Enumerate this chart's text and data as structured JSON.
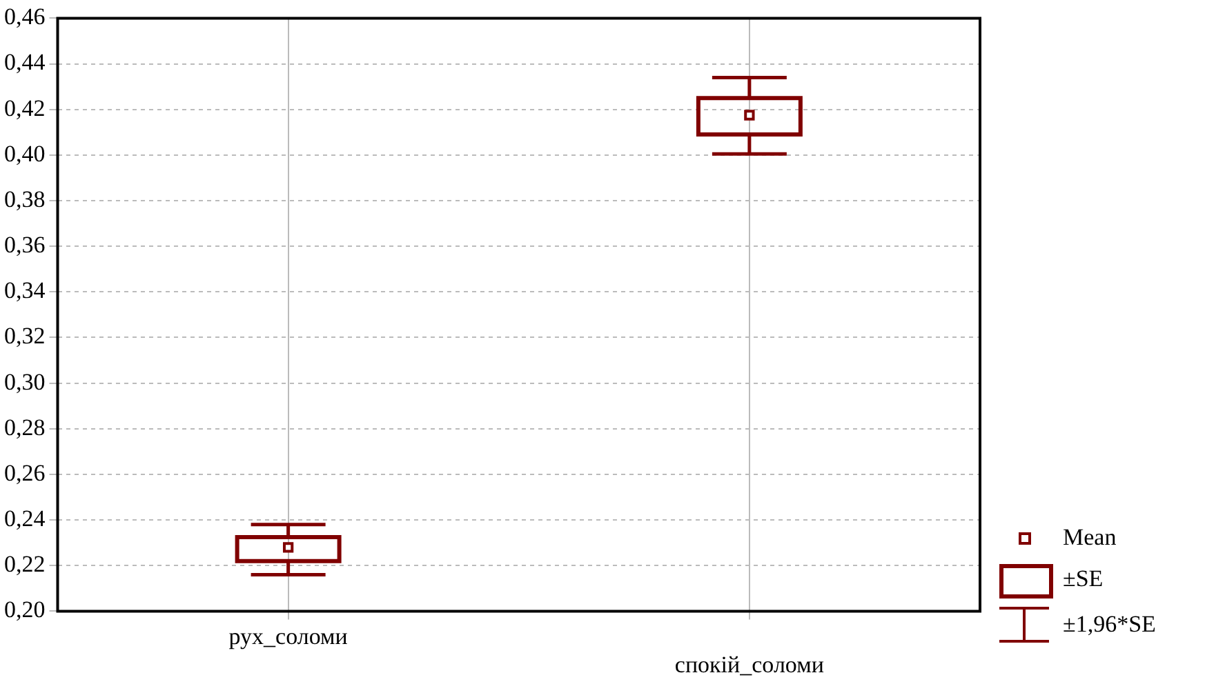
{
  "chart_data": {
    "type": "box",
    "xlabel": null,
    "categories": [
      "рух_соломи",
      "спокій_соломи"
    ],
    "boxes": [
      {
        "low": 0.216,
        "q1": 0.222,
        "mean": 0.228,
        "q3": 0.2325,
        "high": 0.238
      },
      {
        "low": 0.4005,
        "q1": 0.409,
        "mean": 0.4175,
        "q3": 0.425,
        "high": 0.434
      }
    ],
    "color": "#800000",
    "ylim": [
      0.2,
      0.46
    ],
    "yticks": [
      {
        "value": 0.2,
        "label": "0,20"
      },
      {
        "value": 0.22,
        "label": "0,22"
      },
      {
        "value": 0.24,
        "label": "0,24"
      },
      {
        "value": 0.26,
        "label": "0,26"
      },
      {
        "value": 0.28,
        "label": "0,28"
      },
      {
        "value": 0.3,
        "label": "0,30"
      },
      {
        "value": 0.32,
        "label": "0,32"
      },
      {
        "value": 0.34,
        "label": "0,34"
      },
      {
        "value": 0.36,
        "label": "0,36"
      },
      {
        "value": 0.38,
        "label": "0,38"
      },
      {
        "value": 0.4,
        "label": "0,40"
      },
      {
        "value": 0.42,
        "label": "0,42"
      },
      {
        "value": 0.44,
        "label": "0,44"
      },
      {
        "value": 0.46,
        "label": "0,46"
      }
    ],
    "grid": true,
    "annotations": [
      "Mean",
      "±SE",
      "±1,96*SE"
    ]
  }
}
